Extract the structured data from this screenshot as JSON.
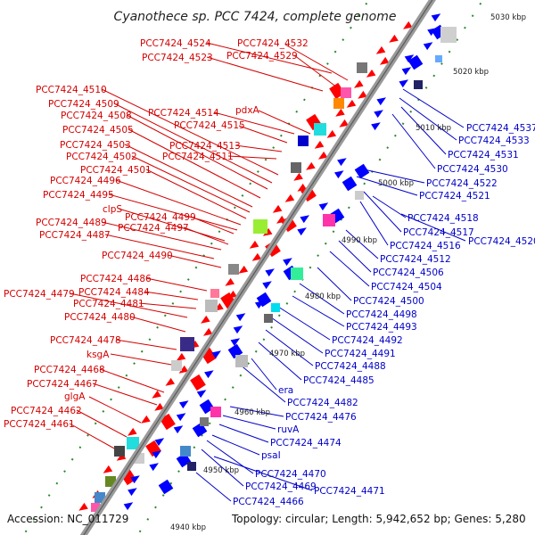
{
  "title": "Cyanothece sp. PCC 7424, complete genome",
  "footer": {
    "accession": "Accession: NC_011729",
    "topology": "Topology: circular; Length: 5,942,652 bp; Genes: 5,280"
  },
  "kbp_labels": [
    "5030 kbp",
    "5020 kbp",
    "5010 kbp",
    "5000 kbp",
    "4990 kbp",
    "4980 kbp",
    "4970 kbp",
    "4960 kbp",
    "4950 kbp",
    "4940 kbp"
  ],
  "left_labels": [
    "PCC7424_4524",
    "PCC7424_4532",
    "PCC7424_4523",
    "PCC7424_4529",
    "PCC7424_4510",
    "PCC7424_4509",
    "PCC7424_4508",
    "PCC7424_4514",
    "pdxA",
    "PCC7424_4505",
    "PCC7424_4515",
    "PCC7424_4503",
    "PCC7424_4513",
    "PCC7424_4502",
    "PCC7424_4511",
    "PCC7424_4501",
    "PCC7424_4496",
    "PCC7424_4495",
    "clpS",
    "PCC7424_4499",
    "PCC7424_4489",
    "PCC7424_4497",
    "PCC7424_4487",
    "PCC7424_4490",
    "PCC7424_4486",
    "PCC7424_4479",
    "PCC7424_4484",
    "PCC7424_4481",
    "PCC7424_4480",
    "PCC7424_4478",
    "ksgA",
    "PCC7424_4468",
    "PCC7424_4467",
    "glgA",
    "PCC7424_4462",
    "PCC7424_4461"
  ],
  "right_labels": [
    "PCC7424_4537",
    "PCC7424_4533",
    "PCC7424_4531",
    "PCC7424_4530",
    "PCC7424_4522",
    "PCC7424_4521",
    "PCC7424_4518",
    "PCC7424_4517",
    "PCC7424_4520",
    "PCC7424_4516",
    "PCC7424_4512",
    "PCC7424_4506",
    "PCC7424_4504",
    "PCC7424_4500",
    "PCC7424_4498",
    "PCC7424_4493",
    "PCC7424_4492",
    "PCC7424_4491",
    "PCC7424_4488",
    "PCC7424_4485",
    "era",
    "PCC7424_4482",
    "PCC7424_4476",
    "ruvA",
    "PCC7424_4474",
    "psaI",
    "PCC7424_4470",
    "PCC7424_4469",
    "PCC7424_4471",
    "PCC7424_4466"
  ],
  "colors": {
    "backbone": "#8c8c8c",
    "forward": "#ff0000",
    "reverse": "#0000ff",
    "label_left": "#d40000",
    "label_right": "#0000c8",
    "tick": "#2a8a2a"
  }
}
